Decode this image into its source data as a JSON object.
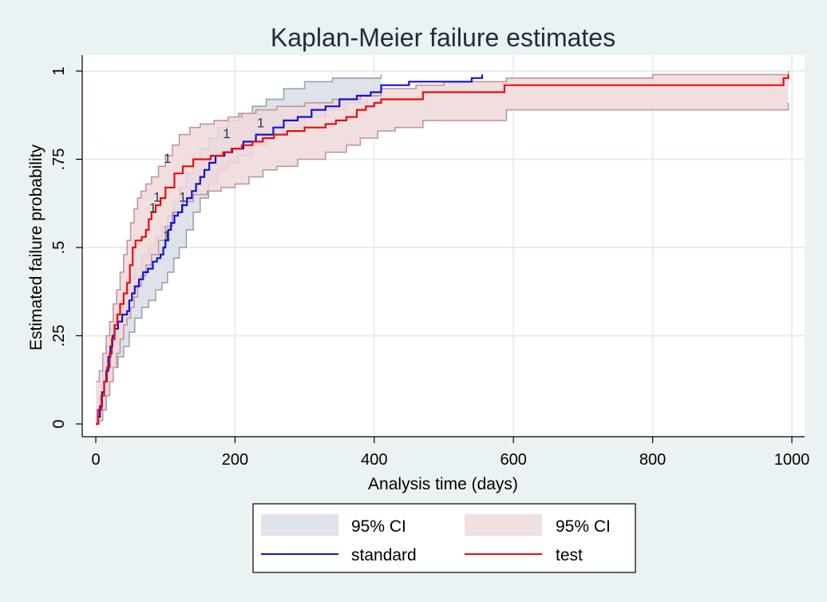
{
  "chart_data": {
    "type": "line",
    "title": "Kaplan-Meier failure estimates",
    "xlabel": "Analysis time (days)",
    "ylabel": "Estimated failure probability",
    "xlim": [
      0,
      1000
    ],
    "ylim": [
      0,
      1
    ],
    "x_ticks": [
      0,
      200,
      400,
      600,
      800,
      1000
    ],
    "y_ticks": [
      0,
      0.25,
      0.5,
      0.75,
      1
    ],
    "y_tick_labels": [
      "0",
      ".25",
      ".5",
      ".75",
      "1"
    ],
    "grid": true,
    "legend_placement": "bottom",
    "legend": [
      {
        "label": "95% CI",
        "kind": "band",
        "color": "#dfe3ec"
      },
      {
        "label": "95% CI",
        "kind": "band",
        "color": "#f1e0e0"
      },
      {
        "label": "standard",
        "kind": "line",
        "color": "#1212d8"
      },
      {
        "label": "test",
        "kind": "line",
        "color": "#e60e0e"
      }
    ],
    "series": [
      {
        "name": "standard",
        "color": "#1212d8",
        "points": [
          [
            0,
            0
          ],
          [
            3,
            0.02
          ],
          [
            6,
            0.05
          ],
          [
            9,
            0.09
          ],
          [
            12,
            0.12
          ],
          [
            15,
            0.15
          ],
          [
            18,
            0.19
          ],
          [
            21,
            0.22
          ],
          [
            24,
            0.25
          ],
          [
            27,
            0.27
          ],
          [
            32,
            0.29
          ],
          [
            38,
            0.31
          ],
          [
            45,
            0.32
          ],
          [
            48,
            0.35
          ],
          [
            52,
            0.37
          ],
          [
            56,
            0.39
          ],
          [
            62,
            0.41
          ],
          [
            68,
            0.43
          ],
          [
            75,
            0.44
          ],
          [
            82,
            0.46
          ],
          [
            88,
            0.47
          ],
          [
            93,
            0.48
          ],
          [
            97,
            0.5
          ],
          [
            100,
            0.52
          ],
          [
            104,
            0.55
          ],
          [
            108,
            0.57
          ],
          [
            113,
            0.59
          ],
          [
            118,
            0.6
          ],
          [
            124,
            0.62
          ],
          [
            131,
            0.64
          ],
          [
            138,
            0.66
          ],
          [
            144,
            0.68
          ],
          [
            150,
            0.7
          ],
          [
            156,
            0.72
          ],
          [
            163,
            0.74
          ],
          [
            172,
            0.76
          ],
          [
            185,
            0.77
          ],
          [
            196,
            0.78
          ],
          [
            212,
            0.8
          ],
          [
            230,
            0.82
          ],
          [
            255,
            0.84
          ],
          [
            270,
            0.86
          ],
          [
            290,
            0.87
          ],
          [
            310,
            0.89
          ],
          [
            330,
            0.9
          ],
          [
            350,
            0.92
          ],
          [
            375,
            0.93
          ],
          [
            395,
            0.94
          ],
          [
            410,
            0.96
          ],
          [
            450,
            0.97
          ],
          [
            540,
            0.98
          ],
          [
            555,
            0.99
          ]
        ],
        "ci_lower": [
          [
            0,
            0
          ],
          [
            5,
            0.01
          ],
          [
            10,
            0.04
          ],
          [
            15,
            0.08
          ],
          [
            20,
            0.12
          ],
          [
            25,
            0.16
          ],
          [
            32,
            0.19
          ],
          [
            40,
            0.22
          ],
          [
            48,
            0.26
          ],
          [
            56,
            0.3
          ],
          [
            66,
            0.33
          ],
          [
            76,
            0.35
          ],
          [
            86,
            0.38
          ],
          [
            95,
            0.4
          ],
          [
            103,
            0.43
          ],
          [
            112,
            0.47
          ],
          [
            120,
            0.5
          ],
          [
            130,
            0.55
          ],
          [
            140,
            0.6
          ],
          [
            150,
            0.64
          ],
          [
            162,
            0.68
          ],
          [
            175,
            0.72
          ],
          [
            190,
            0.74
          ],
          [
            205,
            0.76
          ],
          [
            225,
            0.79
          ],
          [
            245,
            0.82
          ],
          [
            270,
            0.84
          ],
          [
            300,
            0.87
          ],
          [
            330,
            0.89
          ],
          [
            360,
            0.91
          ],
          [
            390,
            0.93
          ],
          [
            410,
            0.94
          ]
        ],
        "ci_upper": [
          [
            0,
            0.02
          ],
          [
            5,
            0.08
          ],
          [
            10,
            0.15
          ],
          [
            15,
            0.22
          ],
          [
            20,
            0.27
          ],
          [
            25,
            0.31
          ],
          [
            32,
            0.34
          ],
          [
            40,
            0.37
          ],
          [
            48,
            0.41
          ],
          [
            56,
            0.44
          ],
          [
            66,
            0.48
          ],
          [
            76,
            0.51
          ],
          [
            86,
            0.53
          ],
          [
            95,
            0.56
          ],
          [
            103,
            0.59
          ],
          [
            112,
            0.63
          ],
          [
            120,
            0.67
          ],
          [
            130,
            0.71
          ],
          [
            140,
            0.75
          ],
          [
            150,
            0.78
          ],
          [
            162,
            0.81
          ],
          [
            175,
            0.84
          ],
          [
            190,
            0.86
          ],
          [
            205,
            0.88
          ],
          [
            225,
            0.9
          ],
          [
            245,
            0.92
          ],
          [
            270,
            0.95
          ],
          [
            300,
            0.97
          ],
          [
            340,
            0.98
          ],
          [
            380,
            0.98
          ],
          [
            410,
            0.99
          ]
        ]
      },
      {
        "name": "test",
        "color": "#e60e0e",
        "points": [
          [
            0,
            0
          ],
          [
            3,
            0.04
          ],
          [
            8,
            0.08
          ],
          [
            12,
            0.12
          ],
          [
            16,
            0.16
          ],
          [
            20,
            0.2
          ],
          [
            23,
            0.24
          ],
          [
            27,
            0.28
          ],
          [
            31,
            0.31
          ],
          [
            35,
            0.34
          ],
          [
            40,
            0.37
          ],
          [
            45,
            0.4
          ],
          [
            49,
            0.45
          ],
          [
            53,
            0.5
          ],
          [
            57,
            0.52
          ],
          [
            66,
            0.53
          ],
          [
            72,
            0.55
          ],
          [
            76,
            0.58
          ],
          [
            80,
            0.6
          ],
          [
            86,
            0.62
          ],
          [
            93,
            0.64
          ],
          [
            100,
            0.67
          ],
          [
            113,
            0.71
          ],
          [
            125,
            0.73
          ],
          [
            140,
            0.75
          ],
          [
            160,
            0.75
          ],
          [
            165,
            0.76
          ],
          [
            180,
            0.76
          ],
          [
            183,
            0.77
          ],
          [
            195,
            0.78
          ],
          [
            210,
            0.79
          ],
          [
            225,
            0.8
          ],
          [
            240,
            0.81
          ],
          [
            256,
            0.82
          ],
          [
            275,
            0.83
          ],
          [
            300,
            0.84
          ],
          [
            330,
            0.85
          ],
          [
            345,
            0.86
          ],
          [
            360,
            0.87
          ],
          [
            375,
            0.89
          ],
          [
            388,
            0.9
          ],
          [
            400,
            0.91
          ],
          [
            410,
            0.92
          ],
          [
            470,
            0.94
          ],
          [
            587,
            0.96
          ],
          [
            988,
            0.98
          ],
          [
            995,
            0.99
          ]
        ],
        "ci_lower": [
          [
            0,
            0
          ],
          [
            5,
            0.01
          ],
          [
            10,
            0.04
          ],
          [
            15,
            0.08
          ],
          [
            20,
            0.12
          ],
          [
            25,
            0.16
          ],
          [
            30,
            0.2
          ],
          [
            35,
            0.24
          ],
          [
            40,
            0.28
          ],
          [
            45,
            0.3
          ],
          [
            50,
            0.33
          ],
          [
            55,
            0.36
          ],
          [
            60,
            0.39
          ],
          [
            65,
            0.42
          ],
          [
            72,
            0.45
          ],
          [
            80,
            0.48
          ],
          [
            90,
            0.52
          ],
          [
            100,
            0.56
          ],
          [
            110,
            0.6
          ],
          [
            125,
            0.63
          ],
          [
            140,
            0.65
          ],
          [
            160,
            0.66
          ],
          [
            180,
            0.67
          ],
          [
            200,
            0.68
          ],
          [
            220,
            0.7
          ],
          [
            240,
            0.72
          ],
          [
            260,
            0.73
          ],
          [
            290,
            0.75
          ],
          [
            330,
            0.77
          ],
          [
            360,
            0.79
          ],
          [
            380,
            0.81
          ],
          [
            405,
            0.83
          ],
          [
            430,
            0.84
          ],
          [
            470,
            0.86
          ],
          [
            590,
            0.89
          ],
          [
            800,
            0.89
          ],
          [
            985,
            0.89
          ],
          [
            995,
            0.91
          ]
        ],
        "ci_upper": [
          [
            0,
            0.12
          ],
          [
            5,
            0.15
          ],
          [
            10,
            0.2
          ],
          [
            15,
            0.25
          ],
          [
            20,
            0.29
          ],
          [
            25,
            0.34
          ],
          [
            30,
            0.38
          ],
          [
            35,
            0.43
          ],
          [
            40,
            0.48
          ],
          [
            45,
            0.52
          ],
          [
            50,
            0.57
          ],
          [
            55,
            0.61
          ],
          [
            60,
            0.64
          ],
          [
            65,
            0.66
          ],
          [
            72,
            0.68
          ],
          [
            80,
            0.7
          ],
          [
            90,
            0.73
          ],
          [
            100,
            0.76
          ],
          [
            110,
            0.79
          ],
          [
            120,
            0.82
          ],
          [
            135,
            0.84
          ],
          [
            150,
            0.85
          ],
          [
            170,
            0.86
          ],
          [
            190,
            0.87
          ],
          [
            210,
            0.88
          ],
          [
            230,
            0.89
          ],
          [
            260,
            0.9
          ],
          [
            300,
            0.91
          ],
          [
            340,
            0.92
          ],
          [
            380,
            0.93
          ],
          [
            410,
            0.95
          ],
          [
            460,
            0.96
          ],
          [
            500,
            0.97
          ],
          [
            590,
            0.98
          ],
          [
            800,
            0.99
          ],
          [
            995,
            1.0
          ]
        ]
      }
    ],
    "censor_marks": [
      {
        "label": "1",
        "x": 188,
        "y": 0.81
      },
      {
        "label": "1",
        "x": 237,
        "y": 0.84
      },
      {
        "label": "1",
        "x": 103,
        "y": 0.74
      },
      {
        "label": "1",
        "x": 88,
        "y": 0.63
      },
      {
        "label": "1",
        "x": 82,
        "y": 0.6
      },
      {
        "label": "1",
        "x": 125,
        "y": 0.63
      },
      {
        "label": "1",
        "x": 102,
        "y": 0.52
      }
    ]
  }
}
